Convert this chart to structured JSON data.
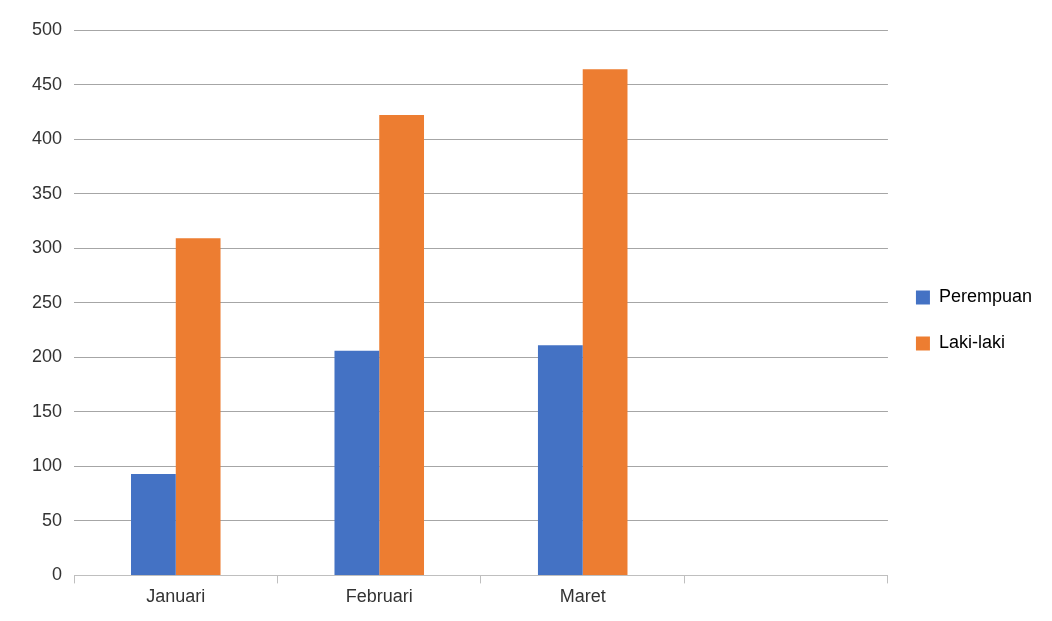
{
  "chart_data": {
    "type": "bar",
    "categories": [
      "Januari",
      "Februari",
      "Maret",
      null
    ],
    "series": [
      {
        "name": "Perempuan",
        "color": "#4472c4",
        "values": [
          93,
          206,
          211,
          null
        ]
      },
      {
        "name": "Laki-laki",
        "color": "#ed7d31",
        "values": [
          309,
          422,
          464,
          null
        ]
      }
    ],
    "ylim": [
      0,
      500
    ],
    "yticks": [
      0,
      50,
      100,
      150,
      200,
      250,
      300,
      350,
      400,
      450,
      500
    ],
    "grid": "y",
    "legend": "right"
  }
}
